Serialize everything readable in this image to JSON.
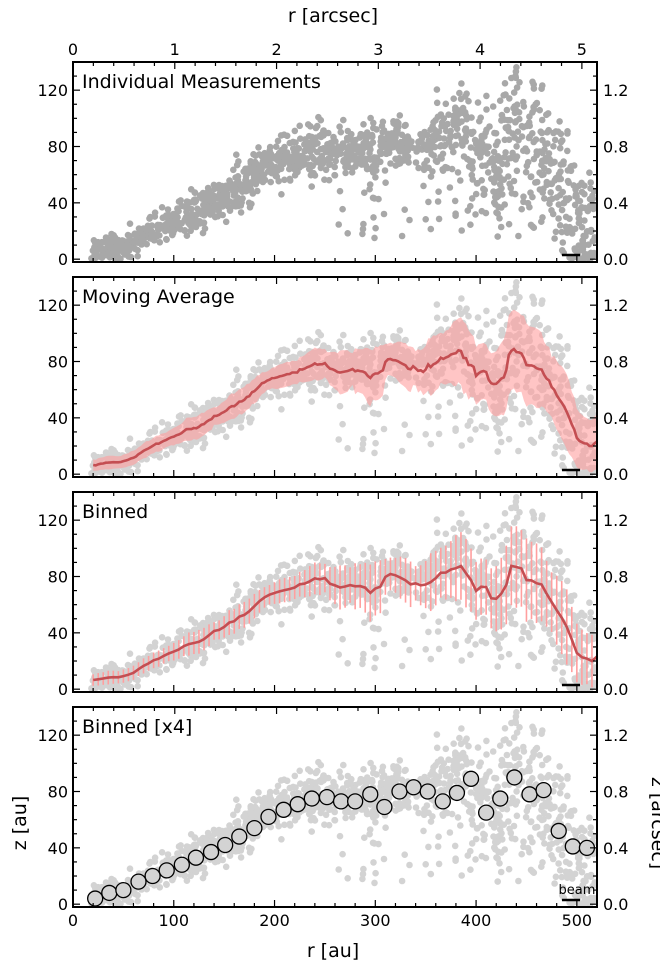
{
  "colors": {
    "scatter": "#a8a8a8",
    "scatter_light": "#d3d3d3",
    "line": "#c44e52",
    "band": "#ff9f9f",
    "marker_fill": "#d3d3d3"
  },
  "axes": {
    "top_xlabel": "r [arcsec]",
    "bottom_xlabel": "r [au]",
    "left_ylabel": "z [au]",
    "right_ylabel": "z [arcsec]",
    "x_au_range": [
      0,
      520
    ],
    "x_au_ticks": [
      "0",
      "100",
      "200",
      "300",
      "400",
      "500"
    ],
    "x_arcsec_ticks": [
      "0",
      "1",
      "2",
      "3",
      "4",
      "5"
    ],
    "y_au_range": [
      -2,
      140
    ],
    "y_au_ticks": [
      "0",
      "40",
      "80",
      "120"
    ],
    "y_arcsec_ticks": [
      "0.0",
      "0.4",
      "0.8",
      "1.2"
    ]
  },
  "panels": [
    {
      "title": "Individual Measurements",
      "style": "scatter"
    },
    {
      "title": "Moving Average",
      "style": "moving"
    },
    {
      "title": "Binned",
      "style": "binned"
    },
    {
      "title": "Binned [x4]",
      "style": "markers",
      "beam_label": "beam"
    }
  ],
  "chart_data": {
    "type": "scatter",
    "x_unit": "au",
    "y_unit": "au",
    "profile": {
      "x": [
        20,
        40,
        50,
        60,
        80,
        100,
        120,
        140,
        160,
        180,
        200,
        220,
        240,
        260,
        280,
        300,
        320,
        340,
        360,
        380,
        390,
        400,
        410,
        420,
        440,
        450,
        460,
        470,
        480,
        490,
        500,
        510,
        520
      ],
      "y": [
        5,
        8,
        5,
        12,
        20,
        27,
        33,
        42,
        50,
        58,
        68,
        73,
        78,
        76,
        78,
        74,
        84,
        78,
        82,
        88,
        92,
        75,
        80,
        70,
        95,
        82,
        92,
        78,
        65,
        48,
        20,
        10,
        2
      ]
    },
    "binned_x4": {
      "x": [
        22,
        36,
        50,
        65,
        79,
        93,
        108,
        122,
        137,
        151,
        165,
        180,
        194,
        209,
        223,
        237,
        252,
        266,
        280,
        295,
        309,
        324,
        338,
        352,
        367,
        381,
        395,
        410,
        424,
        438,
        453,
        467,
        482,
        496,
        510
      ],
      "y": [
        4,
        8,
        10,
        16,
        20,
        24,
        28,
        33,
        37,
        42,
        48,
        54,
        62,
        67,
        71,
        75,
        76,
        73,
        73,
        78,
        69,
        80,
        83,
        80,
        73,
        79,
        89,
        65,
        75,
        90,
        78,
        81,
        52,
        41,
        40
      ]
    }
  }
}
